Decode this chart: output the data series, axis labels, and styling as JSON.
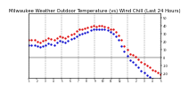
{
  "title": "Milwaukee Weather Outdoor Temperature (vs) Wind Chill (Last 24 Hours)",
  "title_fontsize": 3.8,
  "background_color": "#ffffff",
  "plot_bg_color": "#ffffff",
  "grid_color": "#888888",
  "temp_color": "#dd0000",
  "windchill_color": "#0000cc",
  "ylabel_color": "#000000",
  "xlabel_color": "#000000",
  "xlim": [
    0,
    96
  ],
  "ylim": [
    -25,
    55
  ],
  "yticks": [
    50,
    40,
    30,
    20,
    10,
    0,
    -10,
    -20
  ],
  "ytick_labels": [
    "50",
    "40",
    "30",
    "20",
    "10",
    "0",
    "-10",
    "-20"
  ],
  "temp_data": [
    22,
    22,
    22,
    20,
    19,
    21,
    22,
    24,
    23,
    22,
    25,
    27,
    26,
    25,
    27,
    29,
    30,
    33,
    35,
    36,
    37,
    38,
    39,
    40,
    39,
    40,
    40,
    39,
    38,
    36,
    35,
    32,
    28,
    22,
    15,
    10,
    5,
    3,
    1,
    -2,
    -5,
    -8,
    -10,
    -12,
    -15,
    -17,
    -19,
    -21
  ],
  "windchill_data": [
    16,
    16,
    16,
    14,
    13,
    15,
    16,
    18,
    17,
    16,
    19,
    21,
    20,
    19,
    21,
    23,
    24,
    27,
    29,
    30,
    31,
    32,
    34,
    36,
    35,
    36,
    36,
    35,
    34,
    32,
    30,
    27,
    22,
    15,
    8,
    2,
    -3,
    -6,
    -9,
    -12,
    -16,
    -19,
    -22,
    -24,
    -27,
    -29,
    -31,
    -33
  ],
  "n_points": 48,
  "marker_size": 1.3,
  "line_width": 0.0,
  "grid_positions": [
    0,
    12,
    24,
    36,
    48,
    60,
    72,
    84,
    96
  ],
  "xtick_positions": [
    0,
    6,
    12,
    18,
    24,
    30,
    36,
    42,
    48,
    54,
    60,
    66,
    72,
    78,
    84,
    90,
    96
  ],
  "xtick_labels": [
    "1",
    "2",
    "3",
    "4",
    "5",
    "6",
    "7",
    "8",
    "9",
    "10",
    "11",
    "12",
    "1",
    "2",
    "3",
    "4",
    "5"
  ]
}
